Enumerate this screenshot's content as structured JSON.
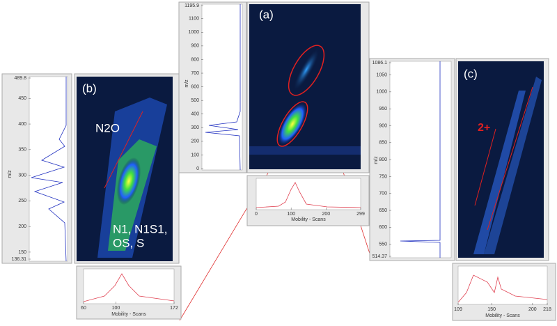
{
  "panels": [
    {
      "label": "(a)",
      "y_label": "m/z",
      "x_label": "Mobility - Scans",
      "yticks": [
        0,
        100,
        200,
        300,
        400,
        500,
        600,
        700,
        800,
        900,
        1000,
        1100,
        1195.9
      ],
      "xticks": [
        0,
        100,
        200,
        299
      ]
    },
    {
      "label": "(b)",
      "y_label": "m/z",
      "x_label": "Mobility - Scans",
      "annotations": [
        "N2O",
        "N1, N1S1,",
        "OS, S"
      ],
      "yticks": [
        136.31,
        150,
        200,
        250,
        300,
        350,
        400,
        450,
        489.8
      ],
      "xticks": [
        60,
        100,
        172
      ]
    },
    {
      "label": "(c)",
      "y_label": "m/z",
      "x_label": "Mobility - Scans",
      "annotations": [
        "2+"
      ],
      "yticks": [
        514.37,
        550,
        600,
        650,
        700,
        750,
        800,
        850,
        900,
        950,
        1000,
        1050,
        1086.1
      ],
      "xticks": [
        109,
        150,
        200,
        218
      ]
    }
  ]
}
